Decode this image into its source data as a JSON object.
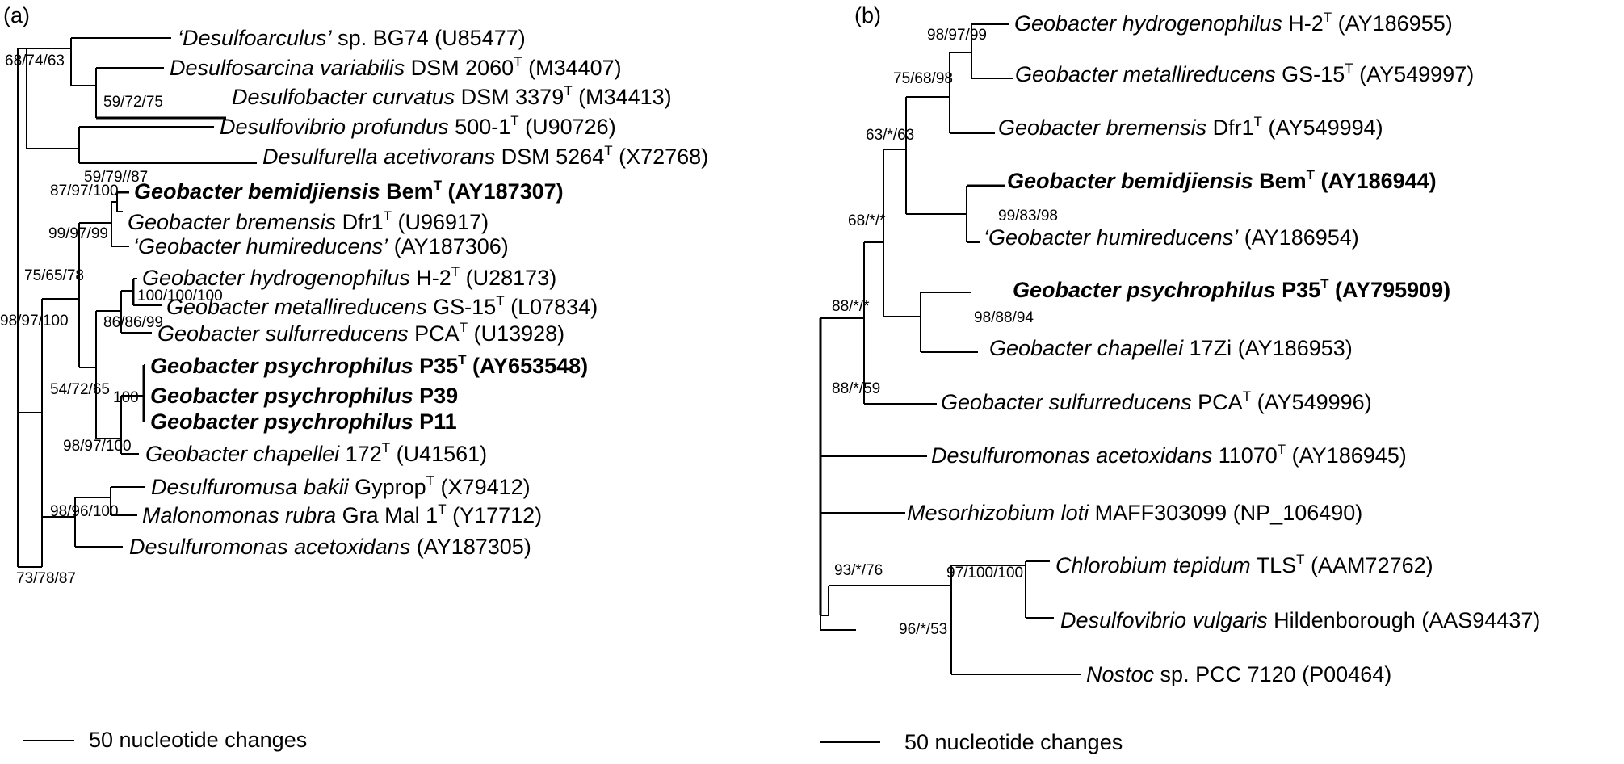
{
  "panel_a": {
    "label": "(a)",
    "scale_label": "50 nucleotide changes",
    "taxa": [
      {
        "name": "‘Desulfoarculus’",
        "rest": " sp. BG74 ",
        "sup": "",
        "acc": "(U85477)",
        "bold": false
      },
      {
        "name": "Desulfosarcina variabilis",
        "rest": " DSM 2060",
        "sup": "T",
        "acc": " (M34407)",
        "bold": false
      },
      {
        "name": "Desulfobacter curvatus",
        "rest": " DSM 3379",
        "sup": "T",
        "acc": " (M34413)",
        "bold": false
      },
      {
        "name": "Desulfovibrio profundus",
        "rest": " 500-1",
        "sup": "T",
        "acc": " (U90726)",
        "bold": false
      },
      {
        "name": "Desulfurella acetivorans",
        "rest": " DSM 5264",
        "sup": "T",
        "acc": " (X72768)",
        "bold": false
      },
      {
        "name": "Geobacter bemidjiensis",
        "rest": " Bem",
        "sup": "T",
        "acc": " (AY187307)",
        "bold": true
      },
      {
        "name": "Geobacter bremensis",
        "rest": " Dfr1",
        "sup": "T",
        "acc": " (U96917)",
        "bold": false
      },
      {
        "name": "‘Geobacter humireducens’",
        "rest": " ",
        "sup": "",
        "acc": "(AY187306)",
        "bold": false
      },
      {
        "name": "Geobacter hydrogenophilus",
        "rest": " H-2",
        "sup": "T",
        "acc": " (U28173)",
        "bold": false
      },
      {
        "name": "Geobacter metallireducens",
        "rest": " GS-15",
        "sup": "T",
        "acc": " (L07834)",
        "bold": false
      },
      {
        "name": "Geobacter sulfurreducens",
        "rest": " PCA",
        "sup": "T",
        "acc": " (U13928)",
        "bold": false
      },
      {
        "name": "Geobacter psychrophilus",
        "rest": " P35",
        "sup": "T",
        "acc": " (AY653548)",
        "bold": true
      },
      {
        "name": "Geobacter psychrophilus",
        "rest": " P39",
        "sup": "",
        "acc": "",
        "bold": true
      },
      {
        "name": "Geobacter psychrophilus",
        "rest": " P11",
        "sup": "",
        "acc": "",
        "bold": true
      },
      {
        "name": "Geobacter chapellei",
        "rest": " 172",
        "sup": "T",
        "acc": " (U41561)",
        "bold": false
      },
      {
        "name": "Desulfuromusa bakii",
        "rest": " Gyprop",
        "sup": "T",
        "acc": " (X79412)",
        "bold": false
      },
      {
        "name": "Malonomonas rubra",
        "rest": " Gra Mal 1",
        "sup": "T",
        "acc": " (Y17712)",
        "bold": false
      },
      {
        "name": "Desulfuromonas acetoxidans",
        "rest": " ",
        "sup": "",
        "acc": "(AY187305)",
        "bold": false
      }
    ],
    "bootstrap": [
      "68/74/63",
      "59/72/75",
      "59/79//87",
      "87/97/100",
      "99/97/99",
      "75/65/78",
      "98/97/100",
      "100/100/100",
      "86/86/99",
      "54/72/65",
      "100",
      "98/97/100",
      "98/96/100",
      "73/78/87"
    ]
  },
  "panel_b": {
    "label": "(b)",
    "scale_label": "50 nucleotide changes",
    "taxa": [
      {
        "name": "Geobacter hydrogenophilus",
        "rest": " H-2",
        "sup": "T",
        "acc": " (AY186955)",
        "bold": false
      },
      {
        "name": "Geobacter metallireducens",
        "rest": " GS-15",
        "sup": "T",
        "acc": " (AY549997)",
        "bold": false
      },
      {
        "name": "Geobacter bremensis",
        "rest": " Dfr1",
        "sup": "T",
        "acc": " (AY549994)",
        "bold": false
      },
      {
        "name": "Geobacter bemidjiensis",
        "rest": " Bem",
        "sup": "T",
        "acc": " (AY186944)",
        "bold": true
      },
      {
        "name": "‘Geobacter humireducens’",
        "rest": " ",
        "sup": "",
        "acc": "(AY186954)",
        "bold": false
      },
      {
        "name": "Geobacter psychrophilus",
        "rest": " P35",
        "sup": "T",
        "acc": " (AY795909)",
        "bold": true
      },
      {
        "name": "Geobacter chapellei",
        "rest": " 17Zi ",
        "sup": "",
        "acc": "(AY186953)",
        "bold": false
      },
      {
        "name": "Geobacter sulfurreducens",
        "rest": " PCA",
        "sup": "T",
        "acc": " (AY549996)",
        "bold": false
      },
      {
        "name": "Desulfuromonas acetoxidans",
        "rest": " 11070",
        "sup": "T",
        "acc": " (AY186945)",
        "bold": false
      },
      {
        "name": "Mesorhizobium loti",
        "rest": " MAFF303099 ",
        "sup": "",
        "acc": "(NP_106490)",
        "bold": false
      },
      {
        "name": "Chlorobium tepidum",
        "rest": " TLS",
        "sup": "T",
        "acc": " (AAM72762)",
        "bold": false
      },
      {
        "name": "Desulfovibrio vulgaris",
        "rest": " Hildenborough ",
        "sup": "",
        "acc": "(AAS94437)",
        "bold": false
      },
      {
        "name": "Nostoc",
        "rest": " sp. PCC 7120 ",
        "sup": "",
        "acc": "(P00464)",
        "bold": false
      }
    ],
    "bootstrap": [
      "98/97/99",
      "75/68/98",
      "63/*/63",
      "68/*/*",
      "99/83/98",
      "88/*/*",
      "98/88/94",
      "88/*/59",
      "93/*/76",
      "97/100/100",
      "96/*/53"
    ]
  }
}
